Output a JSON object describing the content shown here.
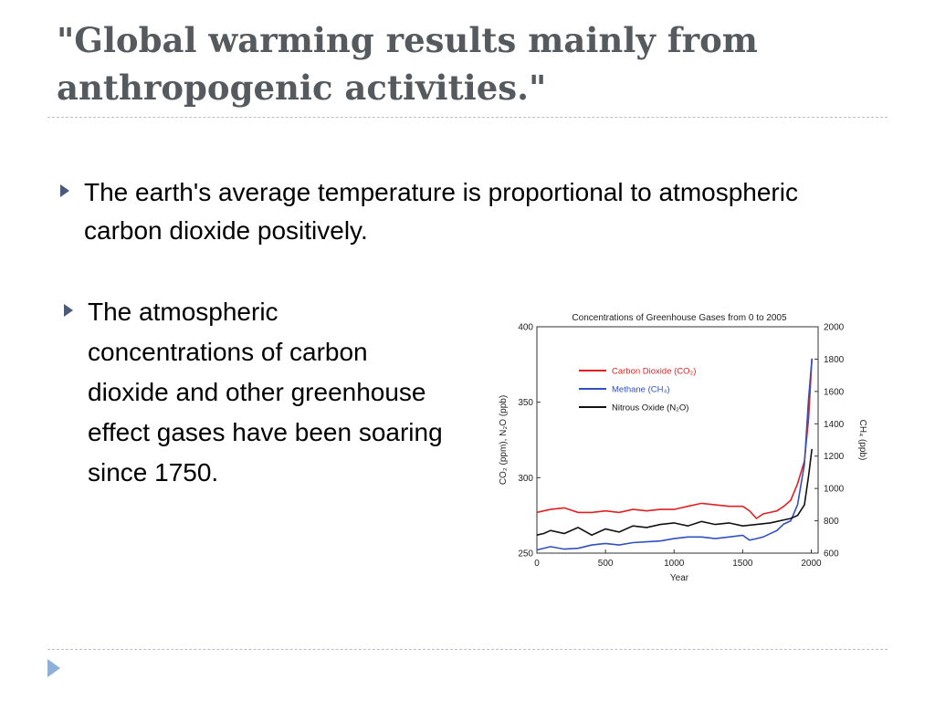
{
  "title": "\"Global warming results mainly from anthropogenic activities.\"",
  "bullets": [
    "The earth's average temperature is proportional to atmospheric carbon dioxide positively.",
    "The atmospheric concentrations of carbon dioxide and other greenhouse effect gases have been soaring since 1750."
  ],
  "colors": {
    "title": "#555a5f",
    "bullet": "#4a5a7a",
    "co2": "#e02020",
    "ch4": "#3050c0",
    "n2o": "#111111"
  },
  "icons": {
    "bullet": "triangle-right-icon",
    "nav": "next-slide-icon"
  },
  "chart_data": {
    "type": "line",
    "title": "Concentrations of Greenhouse Gases from 0 to 2005",
    "xlabel": "Year",
    "ylabel_left": "CO₂ (ppm), N₂O (ppb)",
    "ylabel_right": "CH₄ (ppb)",
    "xlim": [
      0,
      2050
    ],
    "ylim_left": [
      250,
      400
    ],
    "ylim_right": [
      600,
      2000
    ],
    "x_ticks": [
      0,
      500,
      1000,
      1500,
      2000
    ],
    "y_ticks_left": [
      250,
      300,
      350,
      400
    ],
    "y_ticks_right": [
      600,
      800,
      1000,
      1200,
      1400,
      1600,
      1800,
      2000
    ],
    "legend_position": "upper-left",
    "series": [
      {
        "name": "Carbon Dioxide (CO₂)",
        "axis": "left",
        "color": "#e02020",
        "x": [
          0,
          50,
          100,
          200,
          300,
          400,
          500,
          600,
          700,
          800,
          900,
          1000,
          1100,
          1200,
          1300,
          1400,
          1500,
          1550,
          1600,
          1650,
          1700,
          1750,
          1800,
          1850,
          1900,
          1950,
          1980,
          2005
        ],
        "y": [
          277,
          278,
          279,
          280,
          277,
          277,
          278,
          277,
          279,
          278,
          279,
          279,
          281,
          283,
          282,
          281,
          281,
          278,
          273,
          276,
          277,
          278,
          281,
          285,
          296,
          311,
          339,
          379
        ]
      },
      {
        "name": "Methane (CH₄)",
        "axis": "right",
        "color": "#3050c0",
        "x": [
          0,
          100,
          200,
          300,
          400,
          500,
          600,
          700,
          800,
          900,
          1000,
          1100,
          1200,
          1300,
          1400,
          1500,
          1550,
          1600,
          1650,
          1700,
          1750,
          1800,
          1850,
          1900,
          1950,
          1980,
          2005
        ],
        "y": [
          620,
          640,
          625,
          630,
          650,
          660,
          650,
          665,
          670,
          675,
          690,
          700,
          700,
          690,
          700,
          710,
          680,
          690,
          700,
          720,
          740,
          780,
          800,
          900,
          1150,
          1550,
          1800
        ]
      },
      {
        "name": "Nitrous Oxide (N₂O)",
        "axis": "left",
        "color": "#111111",
        "x": [
          0,
          50,
          100,
          200,
          300,
          400,
          500,
          600,
          700,
          800,
          900,
          1000,
          1100,
          1200,
          1300,
          1400,
          1500,
          1600,
          1700,
          1750,
          1800,
          1850,
          1900,
          1950,
          1980,
          2005
        ],
        "y": [
          262,
          263,
          265,
          263,
          267,
          262,
          266,
          264,
          268,
          267,
          269,
          270,
          268,
          271,
          269,
          270,
          268,
          269,
          270,
          271,
          272,
          273,
          275,
          282,
          301,
          319
        ]
      }
    ]
  }
}
